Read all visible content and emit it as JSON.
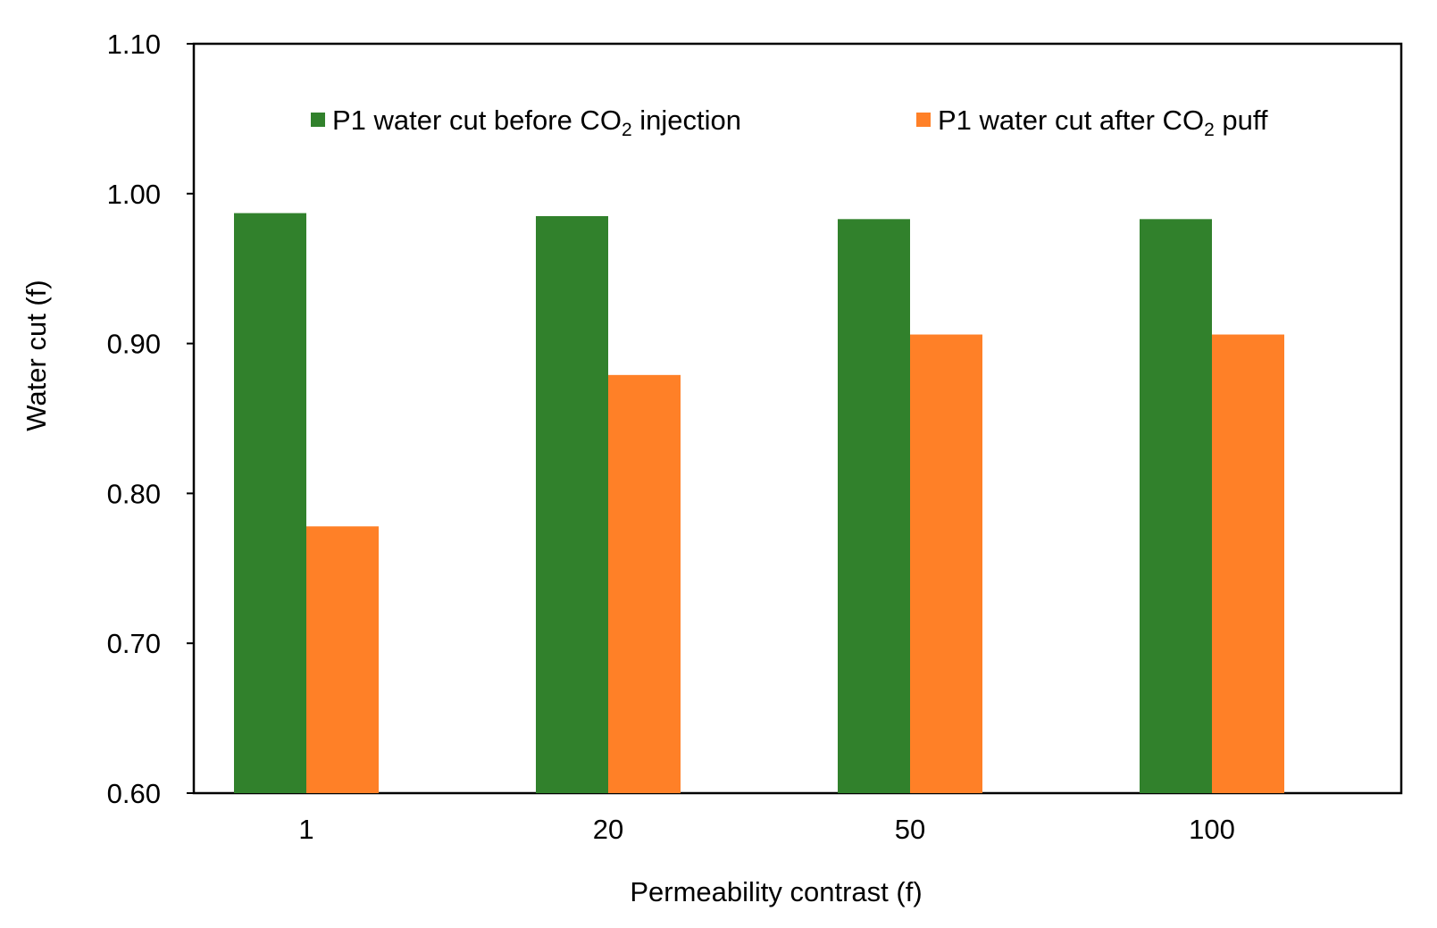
{
  "chart_data": {
    "type": "bar",
    "title": "",
    "xlabel": "Permeability  contrast (f)",
    "ylabel": "Water cut (f)",
    "ylim": [
      0.6,
      1.1
    ],
    "yticks": [
      "0.60",
      "0.70",
      "0.80",
      "0.90",
      "1.00",
      "1.10"
    ],
    "categories": [
      "1",
      "20",
      "50",
      "100"
    ],
    "legend_position": "top",
    "grid": false,
    "series": [
      {
        "name": "P1  water cut before CO2 injection",
        "legend_parts": {
          "prefix": "P1  water cut before CO",
          "sub": "2",
          "suffix": " injection"
        },
        "color": "#31812C",
        "values": [
          0.987,
          0.985,
          0.983,
          0.983
        ]
      },
      {
        "name": "P1  water cut after CO2 puff",
        "legend_parts": {
          "prefix": "P1  water cut after CO",
          "sub": "2",
          "suffix": " puff"
        },
        "color": "#FF8027",
        "values": [
          0.778,
          0.879,
          0.906,
          0.906
        ]
      }
    ]
  }
}
